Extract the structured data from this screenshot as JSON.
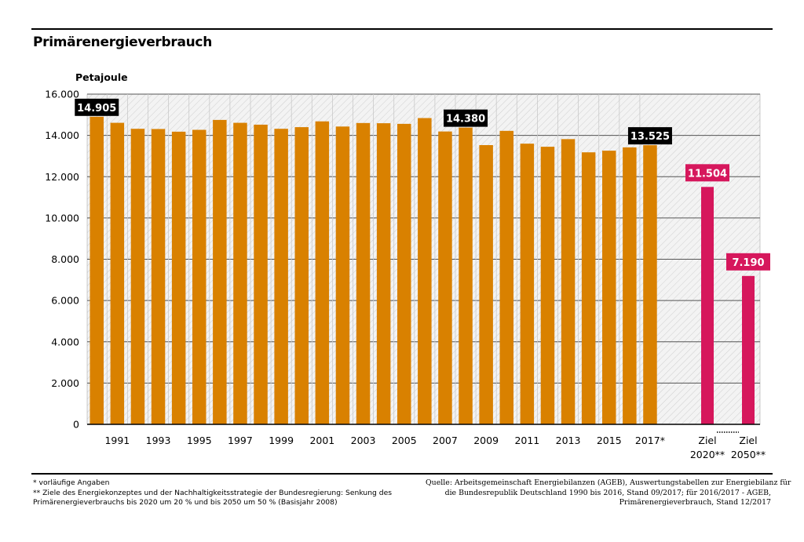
{
  "chart_data": {
    "type": "bar",
    "title": "Primärenergieverbrauch",
    "ylabel": "Petajoule",
    "ylim": [
      0,
      16000
    ],
    "yticks": [
      "0",
      "2.000",
      "4.000",
      "6.000",
      "8.000",
      "10.000",
      "12.000",
      "14.000",
      "16.000"
    ],
    "ytick_values": [
      0,
      2000,
      4000,
      6000,
      8000,
      10000,
      12000,
      14000,
      16000
    ],
    "grid": true,
    "colors": {
      "actual": "#d98100",
      "target": "#d6175c",
      "label_bg_actual": "#000000",
      "label_bg_target": "#d6175c"
    },
    "categories": [
      "1990",
      "1991",
      "1992",
      "1993",
      "1994",
      "1995",
      "1996",
      "1997",
      "1998",
      "1999",
      "2000",
      "2001",
      "2002",
      "2003",
      "2004",
      "2005",
      "2006",
      "2007",
      "2008",
      "2009",
      "2010",
      "2011",
      "2012",
      "2013",
      "2014",
      "2015",
      "2016",
      "2017*"
    ],
    "values": [
      14905,
      14610,
      14320,
      14310,
      14180,
      14270,
      14750,
      14610,
      14520,
      14320,
      14400,
      14680,
      14430,
      14600,
      14590,
      14560,
      14840,
      14190,
      14380,
      13530,
      14220,
      13600,
      13450,
      13820,
      13180,
      13260,
      13420,
      13525
    ],
    "xtick_labels": [
      "1991",
      "1993",
      "1995",
      "1997",
      "1999",
      "2001",
      "2003",
      "2005",
      "2007",
      "2009",
      "2011",
      "2013",
      "2015",
      "2017*"
    ],
    "data_labels": [
      {
        "category": "1990",
        "text": "14.905"
      },
      {
        "category": "2008",
        "text": "14.380"
      },
      {
        "category": "2017*",
        "text": "13.525"
      }
    ],
    "targets": [
      {
        "line1": "Ziel",
        "line2": "2020**",
        "value": 11504,
        "label": "11.504"
      },
      {
        "line1": "Ziel",
        "line2": "2050**",
        "value": 7190,
        "label": "7.190"
      }
    ]
  },
  "footnotes": [
    "* vorläufige Angaben",
    "** Ziele des Energiekonzeptes und der Nachhaltigkeitsstrategie der Bundesregierung: Senkung des",
    "Primärenergieverbrauchs bis 2020 um 20 %  und bis 2050 um 50 % (Basisjahr 2008)"
  ],
  "source": [
    "Quelle: Arbeitsgemeinschaft Energiebilanzen (AGEB), Auswertungstabellen zur Energiebilanz für",
    "die Bundesrepublik Deutschland 1990 bis 2016, Stand 09/2017; für 2016/2017 - AGEB,",
    "Primärenergieverbrauch, Stand 12/2017"
  ]
}
